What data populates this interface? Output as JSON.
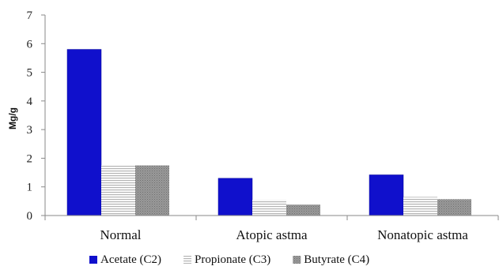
{
  "chart_data": {
    "type": "bar",
    "title": "",
    "xlabel": "",
    "ylabel": "Mg/g",
    "ylim": [
      0,
      7
    ],
    "yticks": [
      0,
      1,
      2,
      3,
      4,
      5,
      6,
      7
    ],
    "grid": false,
    "legend_position": "bottom",
    "categories": [
      "Normal",
      "Atopic astma",
      "Nonatopic astma"
    ],
    "series": [
      {
        "name": "Acetate (C2)",
        "values": [
          5.8,
          1.3,
          1.42
        ],
        "color": "#1010cc",
        "pattern": "solid"
      },
      {
        "name": "Propionate (C3)",
        "values": [
          1.75,
          0.55,
          0.65
        ],
        "color": "#d0d0d0",
        "pattern": "horizontal-lines"
      },
      {
        "name": "Butyrate (C4)",
        "values": [
          1.75,
          0.38,
          0.57
        ],
        "color": "#8c8c8c",
        "pattern": "dotted"
      }
    ]
  }
}
